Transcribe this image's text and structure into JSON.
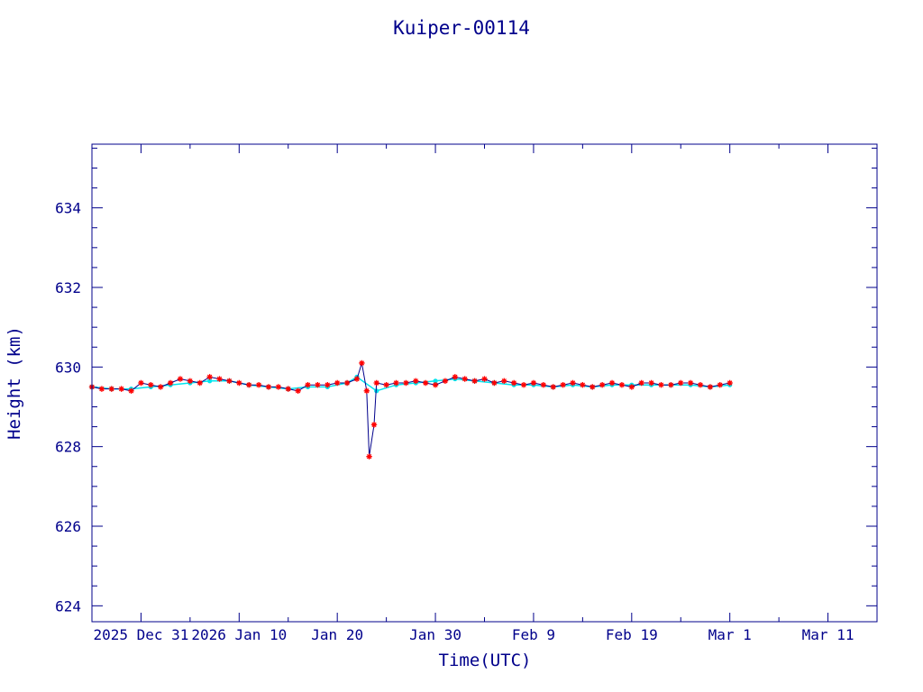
{
  "chart_data": {
    "type": "line",
    "title": "Kuiper-00114",
    "xlabel": "Time(UTC)",
    "ylabel": "Height (km)",
    "x_tick_labels": [
      "2025 Dec 31",
      "2026 Jan 10",
      "Jan 20",
      "Jan 30",
      "Feb  9",
      "Feb 19",
      "Mar  1",
      "Mar 11"
    ],
    "x_tick_dates": [
      "2025-12-31",
      "2026-01-10",
      "2026-01-20",
      "2026-01-30",
      "2026-02-09",
      "2026-02-19",
      "2026-03-01",
      "2026-03-11"
    ],
    "xlim": [
      "2025-12-26",
      "2026-03-16"
    ],
    "ylim": [
      623.6,
      635.6
    ],
    "y_ticks": [
      624,
      626,
      628,
      630,
      632,
      634
    ],
    "grid": false,
    "colors": {
      "axes": "#00008b",
      "line": "#00008b",
      "marker": "#ff0000",
      "smoothed": "#00e5ee"
    },
    "series": [
      {
        "marker": "star",
        "points": [
          [
            "2025-12-26",
            629.5
          ],
          [
            "2025-12-27",
            629.45
          ],
          [
            "2025-12-28",
            629.45
          ],
          [
            "2025-12-29",
            629.45
          ],
          [
            "2025-12-30",
            629.4
          ],
          [
            "2025-12-31",
            629.6
          ],
          [
            "2026-01-01",
            629.55
          ],
          [
            "2026-01-02",
            629.5
          ],
          [
            "2026-01-03",
            629.6
          ],
          [
            "2026-01-04",
            629.7
          ],
          [
            "2026-01-05",
            629.65
          ],
          [
            "2026-01-06",
            629.6
          ],
          [
            "2026-01-07",
            629.75
          ],
          [
            "2026-01-08",
            629.7
          ],
          [
            "2026-01-09",
            629.65
          ],
          [
            "2026-01-10",
            629.6
          ],
          [
            "2026-01-11",
            629.55
          ],
          [
            "2026-01-12",
            629.55
          ],
          [
            "2026-01-13",
            629.5
          ],
          [
            "2026-01-14",
            629.5
          ],
          [
            "2026-01-15",
            629.45
          ],
          [
            "2026-01-16",
            629.4
          ],
          [
            "2026-01-17",
            629.55
          ],
          [
            "2026-01-18",
            629.55
          ],
          [
            "2026-01-19",
            629.55
          ],
          [
            "2026-01-20",
            629.6
          ],
          [
            "2026-01-21",
            629.6
          ],
          [
            "2026-01-22",
            629.7
          ],
          [
            "2026-01-22T12:00",
            630.1
          ],
          [
            "2026-01-23",
            629.4
          ],
          [
            "2026-01-23T06:00",
            627.75
          ],
          [
            "2026-01-23T18:00",
            628.55
          ],
          [
            "2026-01-24",
            629.6
          ],
          [
            "2026-01-25",
            629.55
          ],
          [
            "2026-01-26",
            629.6
          ],
          [
            "2026-01-27",
            629.6
          ],
          [
            "2026-01-28",
            629.65
          ],
          [
            "2026-01-29",
            629.6
          ],
          [
            "2026-01-30",
            629.55
          ],
          [
            "2026-01-31",
            629.65
          ],
          [
            "2026-02-01",
            629.75
          ],
          [
            "2026-02-02",
            629.7
          ],
          [
            "2026-02-03",
            629.65
          ],
          [
            "2026-02-04",
            629.7
          ],
          [
            "2026-02-05",
            629.6
          ],
          [
            "2026-02-06",
            629.65
          ],
          [
            "2026-02-07",
            629.6
          ],
          [
            "2026-02-08",
            629.55
          ],
          [
            "2026-02-09",
            629.6
          ],
          [
            "2026-02-10",
            629.55
          ],
          [
            "2026-02-11",
            629.5
          ],
          [
            "2026-02-12",
            629.55
          ],
          [
            "2026-02-13",
            629.6
          ],
          [
            "2026-02-14",
            629.55
          ],
          [
            "2026-02-15",
            629.5
          ],
          [
            "2026-02-16",
            629.55
          ],
          [
            "2026-02-17",
            629.6
          ],
          [
            "2026-02-18",
            629.55
          ],
          [
            "2026-02-19",
            629.5
          ],
          [
            "2026-02-20",
            629.6
          ],
          [
            "2026-02-21",
            629.6
          ],
          [
            "2026-02-22",
            629.55
          ],
          [
            "2026-02-23",
            629.55
          ],
          [
            "2026-02-24",
            629.6
          ],
          [
            "2026-02-25",
            629.6
          ],
          [
            "2026-02-26",
            629.55
          ],
          [
            "2026-02-27",
            629.5
          ],
          [
            "2026-02-28",
            629.55
          ],
          [
            "2026-03-01",
            629.6
          ]
        ]
      },
      {
        "marker": "dot",
        "points": [
          [
            "2025-12-26",
            629.5
          ],
          [
            "2025-12-28",
            629.45
          ],
          [
            "2025-12-30",
            629.45
          ],
          [
            "2026-01-01",
            629.5
          ],
          [
            "2026-01-03",
            629.55
          ],
          [
            "2026-01-05",
            629.6
          ],
          [
            "2026-01-07",
            629.65
          ],
          [
            "2026-01-09",
            629.65
          ],
          [
            "2026-01-11",
            629.55
          ],
          [
            "2026-01-13",
            629.5
          ],
          [
            "2026-01-15",
            629.45
          ],
          [
            "2026-01-17",
            629.5
          ],
          [
            "2026-01-19",
            629.5
          ],
          [
            "2026-01-21",
            629.6
          ],
          [
            "2026-01-22",
            629.75
          ],
          [
            "2026-01-24",
            629.4
          ],
          [
            "2026-01-26",
            629.55
          ],
          [
            "2026-01-28",
            629.6
          ],
          [
            "2026-01-30",
            629.65
          ],
          [
            "2026-02-01",
            629.7
          ],
          [
            "2026-02-03",
            629.65
          ],
          [
            "2026-02-05",
            629.6
          ],
          [
            "2026-02-07",
            629.55
          ],
          [
            "2026-02-09",
            629.55
          ],
          [
            "2026-02-11",
            629.5
          ],
          [
            "2026-02-13",
            629.55
          ],
          [
            "2026-02-15",
            629.5
          ],
          [
            "2026-02-17",
            629.55
          ],
          [
            "2026-02-19",
            629.55
          ],
          [
            "2026-02-21",
            629.55
          ],
          [
            "2026-02-23",
            629.55
          ],
          [
            "2026-02-25",
            629.55
          ],
          [
            "2026-02-27",
            629.5
          ],
          [
            "2026-03-01",
            629.55
          ]
        ]
      }
    ]
  }
}
